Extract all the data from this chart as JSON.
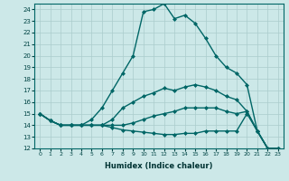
{
  "xlabel": "Humidex (Indice chaleur)",
  "background_color": "#cce8e8",
  "grid_color": "#aacccc",
  "line_color": "#006666",
  "xlim": [
    -0.5,
    23.5
  ],
  "ylim": [
    12,
    24.5
  ],
  "xticks": [
    0,
    1,
    2,
    3,
    4,
    5,
    6,
    7,
    8,
    9,
    10,
    11,
    12,
    13,
    14,
    15,
    16,
    17,
    18,
    19,
    20,
    21,
    22,
    23
  ],
  "yticks": [
    12,
    13,
    14,
    15,
    16,
    17,
    18,
    19,
    20,
    21,
    22,
    23,
    24
  ],
  "series": [
    {
      "x": [
        0,
        1,
        2,
        3,
        4,
        5,
        6,
        7,
        8,
        9,
        10,
        11,
        12,
        13,
        14,
        15,
        16,
        17,
        18,
        19,
        20,
        21,
        22,
        23
      ],
      "y": [
        15,
        14.4,
        14,
        14,
        14,
        14.5,
        15.5,
        17,
        18.5,
        20,
        23.8,
        24.0,
        24.5,
        23.2,
        23.5,
        22.8,
        21.5,
        20.0,
        19.0,
        18.5,
        17.5,
        13.5,
        12,
        12
      ],
      "style": "-",
      "marker": "D",
      "markersize": 2.0,
      "linewidth": 1.0
    },
    {
      "x": [
        0,
        1,
        2,
        3,
        4,
        5,
        6,
        7,
        8,
        9,
        10,
        11,
        12,
        13,
        14,
        15,
        16,
        17,
        18,
        19,
        20,
        21,
        22,
        23
      ],
      "y": [
        15,
        14.4,
        14,
        14,
        14,
        14,
        14,
        14.5,
        15.5,
        16.0,
        16.5,
        16.8,
        17.2,
        17.0,
        17.3,
        17.5,
        17.3,
        17.0,
        16.5,
        16.2,
        15.2,
        13.5,
        12,
        12
      ],
      "style": "-",
      "marker": "D",
      "markersize": 2.0,
      "linewidth": 1.0
    },
    {
      "x": [
        0,
        1,
        2,
        3,
        4,
        5,
        6,
        7,
        8,
        9,
        10,
        11,
        12,
        13,
        14,
        15,
        16,
        17,
        18,
        19,
        20,
        21,
        22,
        23
      ],
      "y": [
        15,
        14.4,
        14,
        14,
        14,
        14,
        14,
        14,
        14,
        14.2,
        14.5,
        14.8,
        15.0,
        15.2,
        15.5,
        15.5,
        15.5,
        15.5,
        15.2,
        15.0,
        15.2,
        13.5,
        12,
        12
      ],
      "style": "-",
      "marker": "D",
      "markersize": 2.0,
      "linewidth": 1.0
    },
    {
      "x": [
        0,
        1,
        2,
        3,
        4,
        5,
        6,
        7,
        8,
        9,
        10,
        11,
        12,
        13,
        14,
        15,
        16,
        17,
        18,
        19,
        20,
        21,
        22,
        23
      ],
      "y": [
        15,
        14.4,
        14,
        14,
        14,
        14,
        14,
        13.8,
        13.6,
        13.5,
        13.4,
        13.3,
        13.2,
        13.2,
        13.3,
        13.3,
        13.5,
        13.5,
        13.5,
        13.5,
        15.0,
        13.5,
        12,
        12
      ],
      "style": "-",
      "marker": "D",
      "markersize": 2.0,
      "linewidth": 1.0
    }
  ]
}
